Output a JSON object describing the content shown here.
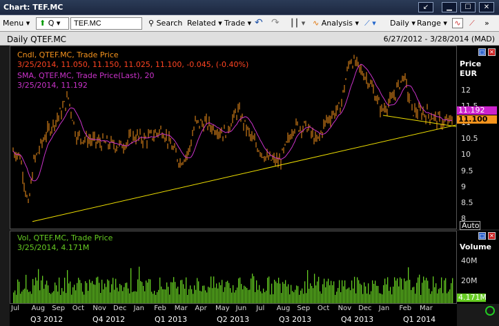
{
  "window": {
    "title": "Chart: TEF.MC"
  },
  "toolbar": {
    "menu": "Menu",
    "symbol": "TEF.MC",
    "search": "Search",
    "related": "Related",
    "trade": "Trade",
    "analysis": "Analysis",
    "interval": "Daily",
    "range": "Range",
    "quick": "Q"
  },
  "chart": {
    "name": "Daily QTEF.MC",
    "range": "6/27/2012 - 3/28/2014  (MAD)"
  },
  "price_pane": {
    "legend1": "Cndl, QTEF.MC, Trade Price",
    "legend1_vals": "3/25/2014, 11.050, 11.150, 11.025, 11.100, -0.045, (-0.40%)",
    "legend2": "SMA, QTEF.MC, Trade Price(Last),  20",
    "legend2_vals": "3/25/2014, 11.192",
    "axis_title": "Price",
    "axis_unit": "EUR",
    "ticks": [
      "12",
      "11.5",
      "11",
      "10.5",
      "10",
      "9.5",
      "9",
      "8.5",
      "8"
    ],
    "sma_tag": "11.192",
    "last_tag": "11.100",
    "auto": "Auto",
    "colors": {
      "candle": "#f7941d",
      "sma": "#cc33cc",
      "trend": "#f0e000"
    }
  },
  "volume_pane": {
    "legend1": "Vol, QTEF.MC, Trade Price",
    "legend2": "3/25/2014, 4.171M",
    "axis_title": "Volume",
    "ticks": [
      "40M",
      "20M"
    ],
    "last_tag": "4.171M",
    "color": "#66cc22"
  },
  "x_axis": {
    "months": [
      "Jul",
      "Aug",
      "Sep",
      "Oct",
      "Nov",
      "Dec",
      "Jan",
      "Feb",
      "Mar",
      "Apr",
      "May",
      "Jun",
      "Jul",
      "Aug",
      "Sep",
      "Oct",
      "Nov",
      "Dec",
      "Jan",
      "Feb",
      "Mar"
    ],
    "quarters": [
      "Q3 2012",
      "Q4 2012",
      "Q1 2013",
      "Q2 2013",
      "Q3 2013",
      "Q4 2013",
      "Q1 2014"
    ]
  }
}
